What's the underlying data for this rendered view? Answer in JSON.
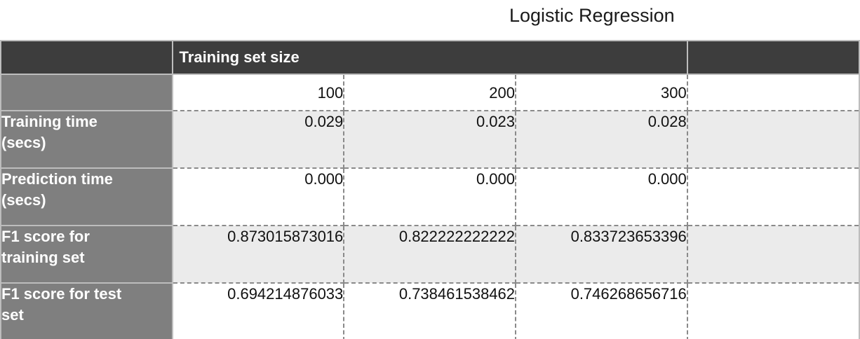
{
  "title": "Logistic Regression",
  "table": {
    "header_label": "Training set size",
    "sizes": [
      "100",
      "200",
      "300",
      ""
    ],
    "rows": [
      {
        "label_line1": "Training time",
        "label_line2": "(secs)",
        "values": [
          "0.029",
          "0.023",
          "0.028",
          ""
        ]
      },
      {
        "label_line1": "Prediction time",
        "label_line2": "(secs)",
        "values": [
          "0.000",
          "0.000",
          "0.000",
          ""
        ]
      },
      {
        "label_line1": "F1 score for",
        "label_line2": "training set",
        "values": [
          "0.873015873016",
          "0.822222222222",
          "0.833723653396",
          ""
        ]
      },
      {
        "label_line1": "F1 score for test",
        "label_line2": "set",
        "values": [
          "0.694214876033",
          "0.738461538462",
          "0.746268656716",
          ""
        ]
      }
    ]
  }
}
